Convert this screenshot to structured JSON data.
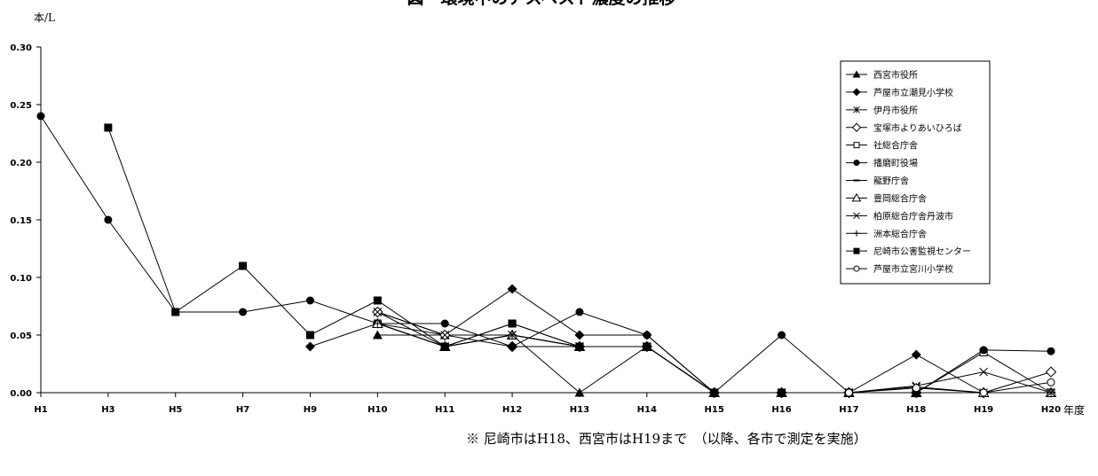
{
  "chart_data": {
    "type": "line",
    "title": "図　環境中のアスベスト濃度の推移",
    "ylabel": "本/L",
    "xlabel": "年度",
    "ylim": [
      0,
      0.3
    ],
    "yticks": [
      "0.00",
      "0.05",
      "0.10",
      "0.15",
      "0.20",
      "0.25",
      "0.30"
    ],
    "categories": [
      "H1",
      "H3",
      "H5",
      "H7",
      "H9",
      "H10",
      "H11",
      "H12",
      "H13",
      "H14",
      "H15",
      "H16",
      "H17",
      "H18",
      "H19",
      "H20"
    ],
    "grid": false,
    "legend_position": "top-right",
    "series": [
      {
        "name": "西宮市役所",
        "marker": "triangle-filled",
        "values": [
          null,
          null,
          null,
          null,
          null,
          0.05,
          0.05,
          0.05,
          0.0,
          0.04,
          0.0,
          0.0,
          0.0,
          0.0,
          0.0,
          null
        ]
      },
      {
        "name": "芦屋市立潮見小学校",
        "marker": "diamond-filled",
        "values": [
          null,
          null,
          null,
          null,
          0.04,
          0.06,
          0.05,
          0.09,
          0.05,
          0.05,
          0.0,
          0.0,
          0.0,
          0.033,
          0.0,
          0.0
        ]
      },
      {
        "name": "伊丹市役所",
        "marker": "asterisk",
        "values": [
          null,
          null,
          null,
          null,
          null,
          0.07,
          0.04,
          0.05,
          0.04,
          0.04,
          0.0,
          0.0,
          0.0,
          0.005,
          0.0,
          0.0
        ]
      },
      {
        "name": "宝塚市よりあいひろば",
        "marker": "diamond-open",
        "values": [
          null,
          null,
          null,
          null,
          null,
          0.07,
          0.05,
          0.04,
          0.04,
          0.04,
          0.0,
          0.0,
          0.0,
          0.0,
          0.0,
          0.018
        ]
      },
      {
        "name": "社総合庁舎",
        "marker": "square-open",
        "values": [
          null,
          null,
          null,
          null,
          null,
          0.06,
          0.04,
          0.06,
          0.04,
          0.04,
          0.0,
          0.0,
          0.0,
          0.0,
          0.035,
          0.0
        ]
      },
      {
        "name": "播磨町役場",
        "marker": "circle-filled",
        "values": [
          0.24,
          0.15,
          0.07,
          0.07,
          0.08,
          0.06,
          0.06,
          0.04,
          0.07,
          0.05,
          0.0,
          0.05,
          0.0,
          0.0,
          0.037,
          0.036
        ]
      },
      {
        "name": "龍野庁舎",
        "marker": "dash",
        "values": [
          null,
          null,
          null,
          null,
          null,
          0.06,
          0.04,
          0.05,
          0.04,
          0.04,
          0.0,
          0.0,
          0.0,
          0.0,
          0.0,
          0.0
        ]
      },
      {
        "name": "豊岡総合庁舎",
        "marker": "triangle-open",
        "values": [
          null,
          null,
          null,
          null,
          null,
          0.06,
          0.04,
          0.05,
          0.04,
          0.04,
          0.0,
          0.0,
          0.0,
          0.0,
          0.0,
          0.0
        ]
      },
      {
        "name": "柏原総合庁舎丹波市",
        "marker": "x",
        "values": [
          null,
          null,
          null,
          null,
          null,
          0.07,
          0.05,
          0.05,
          0.04,
          0.04,
          0.0,
          0.0,
          0.0,
          0.006,
          0.018,
          0.0
        ]
      },
      {
        "name": "洲本総合庁舎",
        "marker": "plus",
        "values": [
          null,
          null,
          null,
          null,
          null,
          0.06,
          0.04,
          0.05,
          0.04,
          0.04,
          0.0,
          0.0,
          0.0,
          0.0,
          0.0,
          0.0
        ]
      },
      {
        "name": "尼崎市公害監視センター",
        "marker": "square-filled",
        "values": [
          null,
          0.23,
          0.07,
          0.11,
          0.05,
          0.08,
          0.04,
          0.06,
          0.04,
          0.04,
          0.0,
          0.0,
          0.0,
          0.0,
          null,
          null
        ]
      },
      {
        "name": "芦屋市立宮川小学校",
        "marker": "circle-open",
        "values": [
          null,
          null,
          null,
          null,
          null,
          null,
          null,
          null,
          null,
          null,
          null,
          null,
          0.0,
          0.004,
          0.0,
          0.009
        ]
      }
    ]
  },
  "note": "※ 尼崎市はH18、西宮市はH19まで　（以降、各市で測定を実施）"
}
